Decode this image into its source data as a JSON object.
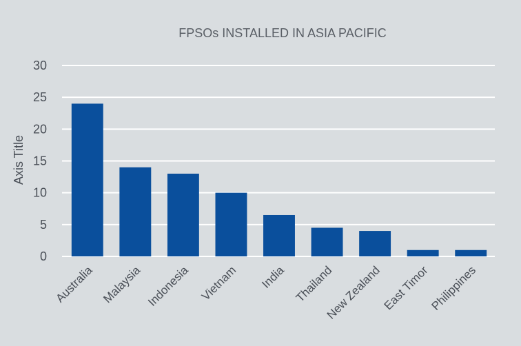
{
  "chart_data": {
    "type": "bar",
    "title": "FPSOs INSTALLED IN ASIA PACIFIC",
    "xlabel": "",
    "ylabel": "Axis Title",
    "categories": [
      "Australia",
      "Malaysia",
      "Indonesia",
      "Vietnam",
      "India",
      "Thailand",
      "New Zealand",
      "East Timor",
      "Philippines"
    ],
    "values": [
      24,
      14,
      13,
      10,
      6.5,
      4.5,
      4,
      1,
      1
    ],
    "ylim": [
      0,
      30
    ],
    "yticks": [
      0,
      5,
      10,
      15,
      20,
      25,
      30
    ],
    "grid": true,
    "bar_color": "#0a4f9c",
    "background_color": "#d9dde0"
  }
}
